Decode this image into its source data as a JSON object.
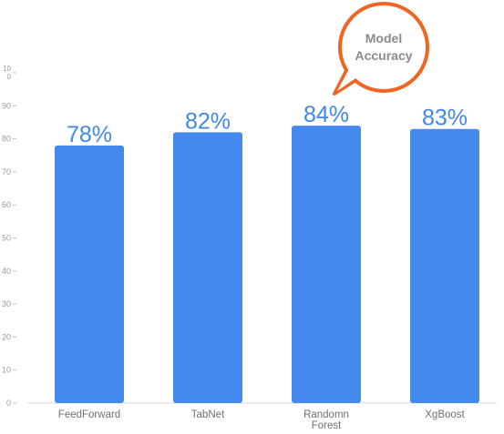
{
  "chart_data": {
    "type": "bar",
    "categories": [
      "FeedForward",
      "TabNet",
      "Randomn Forest",
      "XgBoost"
    ],
    "category_lines": [
      [
        "FeedForward"
      ],
      [
        "TabNet"
      ],
      [
        "Randomn",
        "Forest"
      ],
      [
        "XgBoost"
      ]
    ],
    "values": [
      78,
      82,
      84,
      83
    ],
    "data_labels": [
      "78%",
      "82%",
      "84%",
      "83%"
    ],
    "ylim": [
      0,
      100
    ],
    "yticks": [
      0,
      10,
      20,
      30,
      40,
      50,
      60,
      70,
      80,
      90,
      100
    ],
    "ytick_labels": [
      "0",
      "10",
      "20",
      "30",
      "40",
      "50",
      "60",
      "70",
      "80",
      "90",
      "10\n0"
    ],
    "callout": [
      "Model",
      "Accuracy"
    ],
    "grid": false,
    "colors": {
      "bar": "#4589ee",
      "data_label": "#3f88ea",
      "callout_border": "#f06524",
      "axis": "#d9d9d9"
    }
  }
}
